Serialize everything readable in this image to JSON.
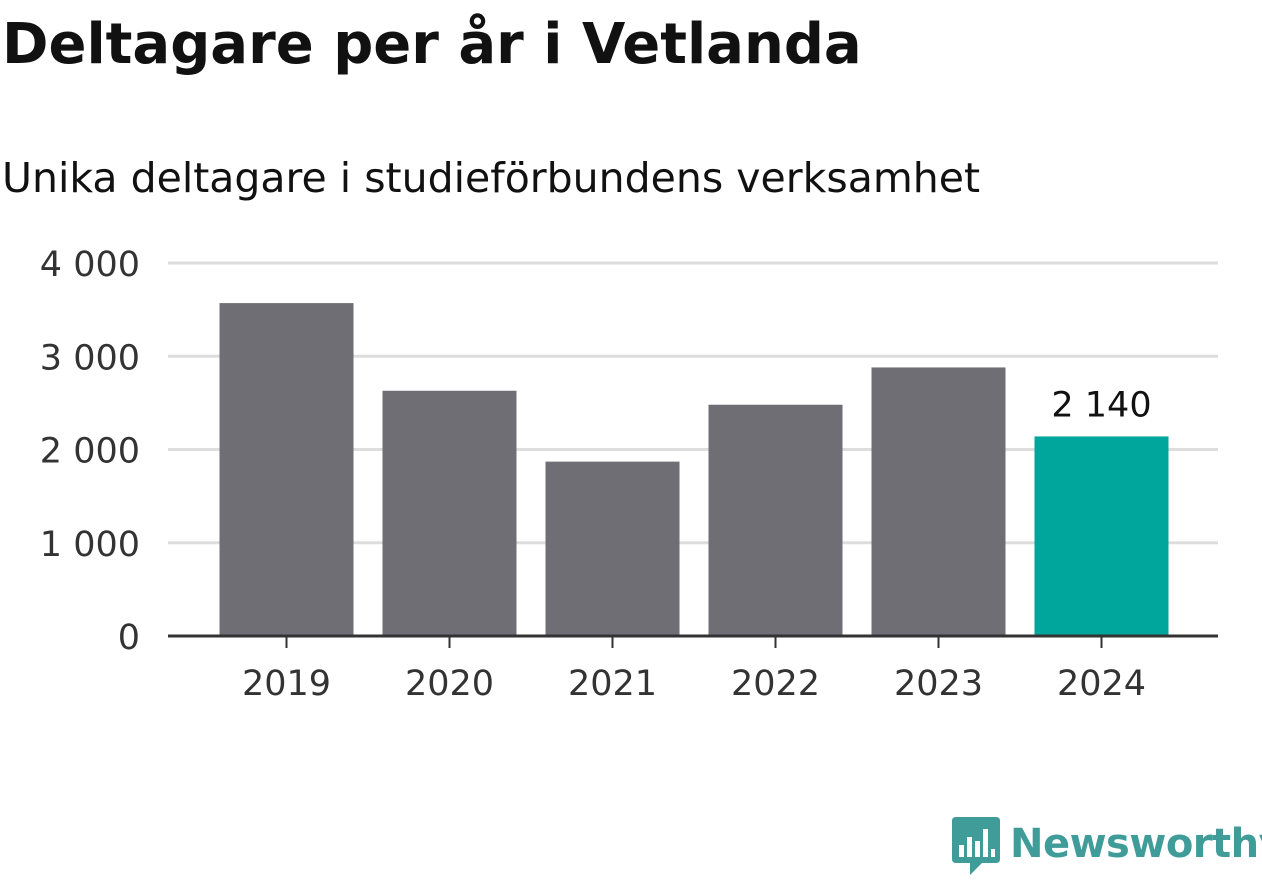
{
  "title": "Deltagare per år i Vetlanda",
  "subtitle": "Unika deltagare i studieförbundens verksamhet",
  "chart_data": {
    "type": "bar",
    "categories": [
      "2019",
      "2020",
      "2021",
      "2022",
      "2023",
      "2024"
    ],
    "values": [
      3570,
      2630,
      1870,
      2480,
      2880,
      2140
    ],
    "ylim": [
      0,
      4000
    ],
    "yticks": [
      0,
      1000,
      2000,
      3000,
      4000
    ],
    "ytick_labels": [
      "0",
      "1 000",
      "2 000",
      "3 000",
      "4 000"
    ],
    "highlight_index": 5,
    "highlight_label": "2 140",
    "grid": true,
    "colors": {
      "bar": "#6f6e75",
      "highlight": "#00a59b",
      "grid": "#dddddd",
      "axis": "#333333",
      "tick_text": "#333333"
    }
  },
  "brand": {
    "name": "Newsworthy",
    "icon": "newsworthy-logo-icon",
    "color": "#3f9c99"
  }
}
